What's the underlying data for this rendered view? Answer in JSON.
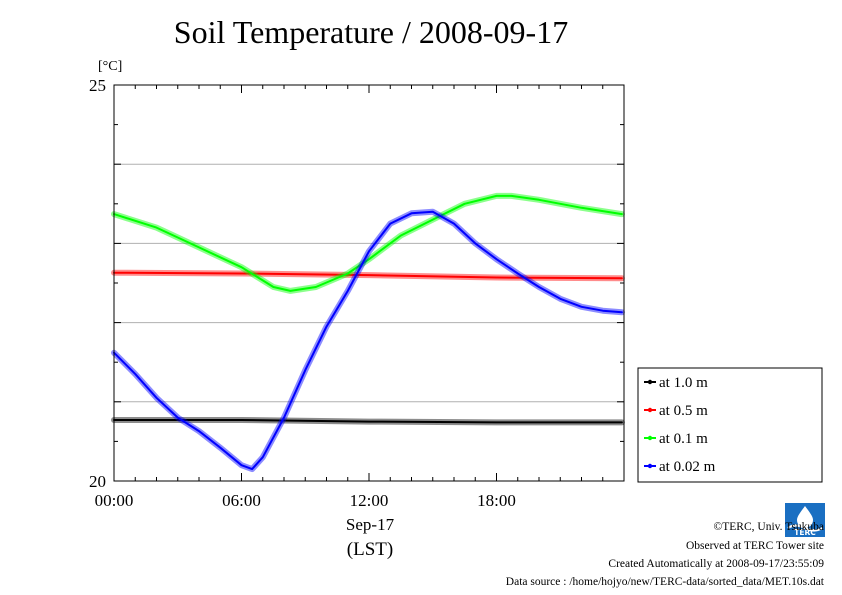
{
  "chart_data": {
    "type": "line",
    "title": "Soil Temperature / 2008-09-17",
    "ylabel": "[°C]",
    "xlabel_date": "Sep-17",
    "xlabel_unit": "(LST)",
    "ylim": [
      20,
      25
    ],
    "xlim_hours": [
      0,
      24
    ],
    "y_ticks": [
      "20",
      "25"
    ],
    "x_ticks": [
      {
        "h": 0,
        "label": "00:00"
      },
      {
        "h": 6,
        "label": "06:00"
      },
      {
        "h": 12,
        "label": "12:00"
      },
      {
        "h": 18,
        "label": "18:00"
      }
    ],
    "grid": "horizontal",
    "legend_position": "right",
    "series": [
      {
        "name": "at 1.0 m",
        "color": "#000000",
        "points": [
          [
            0,
            20.77
          ],
          [
            6,
            20.77
          ],
          [
            12,
            20.75
          ],
          [
            18,
            20.74
          ],
          [
            23.9,
            20.74
          ]
        ]
      },
      {
        "name": "at 0.5 m",
        "color": "#ff0000",
        "points": [
          [
            0,
            22.63
          ],
          [
            6,
            22.62
          ],
          [
            12,
            22.6
          ],
          [
            18,
            22.57
          ],
          [
            23.9,
            22.56
          ]
        ]
      },
      {
        "name": "at 0.1 m",
        "color": "#00ff00",
        "points": [
          [
            0,
            23.37
          ],
          [
            2,
            23.2
          ],
          [
            4,
            22.95
          ],
          [
            6,
            22.7
          ],
          [
            7.5,
            22.45
          ],
          [
            8.3,
            22.4
          ],
          [
            9.5,
            22.45
          ],
          [
            11,
            22.62
          ],
          [
            12,
            22.8
          ],
          [
            13.5,
            23.1
          ],
          [
            15,
            23.3
          ],
          [
            16.5,
            23.5
          ],
          [
            18,
            23.6
          ],
          [
            18.7,
            23.6
          ],
          [
            20,
            23.55
          ],
          [
            22,
            23.45
          ],
          [
            23.9,
            23.37
          ]
        ]
      },
      {
        "name": "at 0.02 m",
        "color": "#0000ff",
        "points": [
          [
            0,
            21.62
          ],
          [
            1,
            21.35
          ],
          [
            2,
            21.05
          ],
          [
            3,
            20.8
          ],
          [
            4,
            20.63
          ],
          [
            5,
            20.42
          ],
          [
            6,
            20.2
          ],
          [
            6.5,
            20.15
          ],
          [
            7,
            20.3
          ],
          [
            8,
            20.8
          ],
          [
            9,
            21.4
          ],
          [
            10,
            21.95
          ],
          [
            11,
            22.4
          ],
          [
            12,
            22.9
          ],
          [
            13,
            23.25
          ],
          [
            14,
            23.38
          ],
          [
            15,
            23.4
          ],
          [
            16,
            23.25
          ],
          [
            17,
            23.0
          ],
          [
            18,
            22.8
          ],
          [
            19,
            22.62
          ],
          [
            20,
            22.45
          ],
          [
            21,
            22.3
          ],
          [
            22,
            22.2
          ],
          [
            23,
            22.15
          ],
          [
            23.9,
            22.13
          ]
        ]
      }
    ]
  },
  "footer": {
    "copyright": "©TERC, Univ. Tsukuba",
    "observed": "Observed at TERC Tower site",
    "created": "Created Automatically at 2008-09-17/23:55:09",
    "source": "Data source : /home/hojyo/new/TERC-data/sorted_data/MET.10s.dat"
  },
  "logo": {
    "text": "TERC",
    "color": "#1a6fc2"
  }
}
